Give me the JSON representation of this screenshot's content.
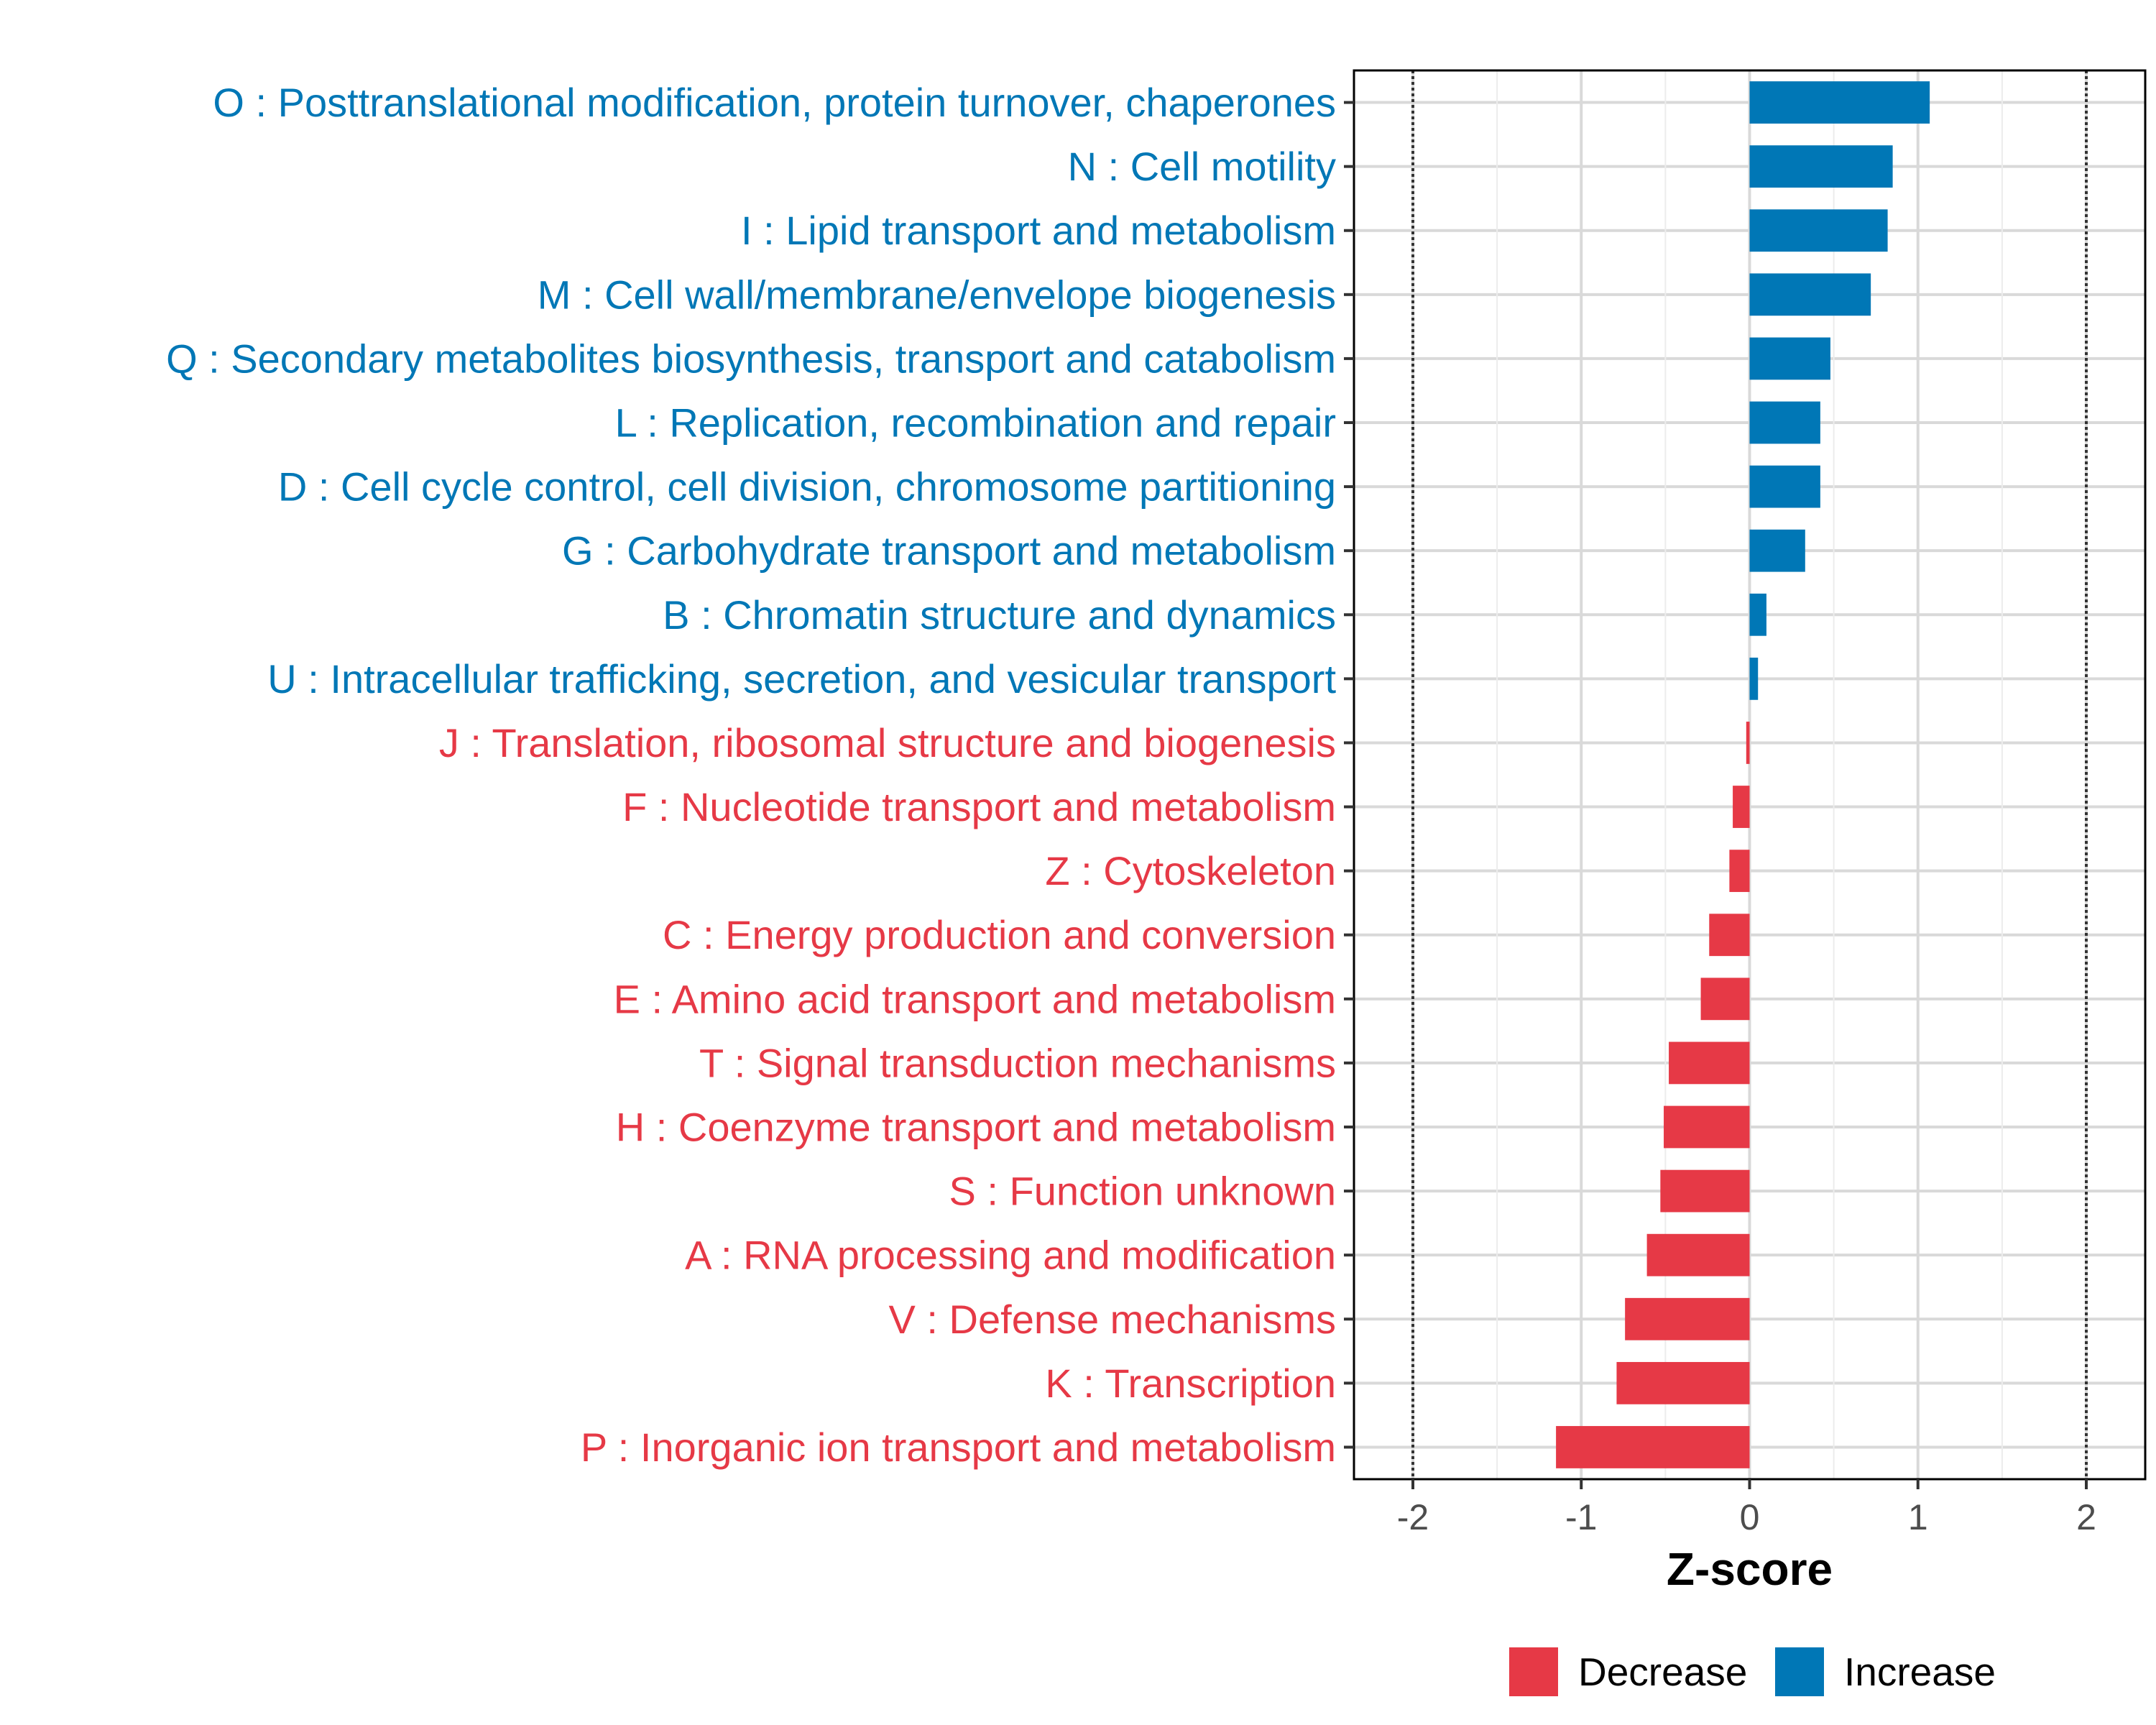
{
  "chart_data": {
    "type": "bar",
    "orientation": "horizontal",
    "title": "",
    "xlabel": "Z-score",
    "ylabel": "",
    "xlim": [
      -2.35,
      2.35
    ],
    "xticks": [
      -2,
      -1,
      0,
      1,
      2
    ],
    "xtick_labels": [
      "-2",
      "-1",
      "0",
      "1",
      "2"
    ],
    "reference_lines": [
      -2,
      2
    ],
    "grid": true,
    "legend_position": "bottom",
    "colors": {
      "Decrease": "#e63946",
      "Increase": "#0077b6"
    },
    "legend": [
      "Decrease",
      "Increase"
    ],
    "categories": [
      "O : Posttranslational modification, protein turnover, chaperones",
      "N : Cell motility",
      "I : Lipid transport and metabolism",
      "M : Cell wall/membrane/envelope biogenesis",
      "Q : Secondary metabolites biosynthesis, transport and catabolism",
      "L : Replication, recombination and repair",
      "D : Cell cycle control, cell division, chromosome partitioning",
      "G : Carbohydrate transport and metabolism",
      "B : Chromatin structure and dynamics",
      "U : Intracellular trafficking, secretion, and vesicular transport",
      "J : Translation, ribosomal structure and biogenesis",
      "F : Nucleotide transport and metabolism",
      "Z : Cytoskeleton",
      "C : Energy production and conversion",
      "E : Amino acid transport and metabolism",
      "T : Signal transduction mechanisms",
      "H : Coenzyme transport and metabolism",
      "S : Function unknown",
      "A : RNA processing and modification",
      "V : Defense mechanisms",
      "K : Transcription",
      "P : Inorganic ion transport and metabolism"
    ],
    "values": [
      1.07,
      0.85,
      0.82,
      0.72,
      0.48,
      0.42,
      0.42,
      0.33,
      0.1,
      0.05,
      -0.02,
      -0.1,
      -0.12,
      -0.24,
      -0.29,
      -0.48,
      -0.51,
      -0.53,
      -0.61,
      -0.74,
      -0.79,
      -1.15
    ],
    "groups": [
      "Increase",
      "Increase",
      "Increase",
      "Increase",
      "Increase",
      "Increase",
      "Increase",
      "Increase",
      "Increase",
      "Increase",
      "Decrease",
      "Decrease",
      "Decrease",
      "Decrease",
      "Decrease",
      "Decrease",
      "Decrease",
      "Decrease",
      "Decrease",
      "Decrease",
      "Decrease",
      "Decrease"
    ]
  }
}
